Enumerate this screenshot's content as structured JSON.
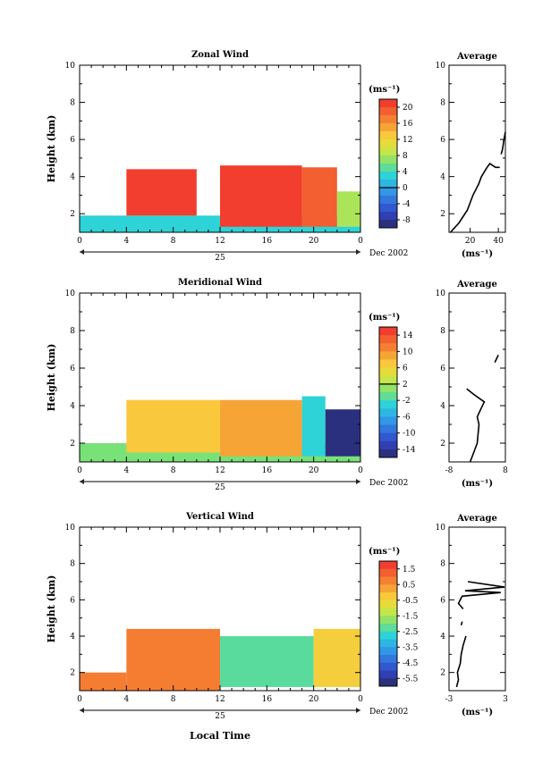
{
  "chart_data": [
    {
      "type": "heatmap",
      "title": "Zonal Wind",
      "ylabel": "Height (km)",
      "x_ticks": [
        "0",
        "4",
        "8",
        "12",
        "16",
        "20",
        "0"
      ],
      "day_label": "25",
      "date_label": "Dec 2002",
      "xlim": [
        0,
        24
      ],
      "ylim": [
        1,
        10
      ],
      "y_ticks": [
        "2",
        "4",
        "6",
        "8",
        "10"
      ],
      "colorbar_unit": "(ms⁻¹)",
      "colorbar_ticks": [
        "20",
        "16",
        "12",
        "8",
        "4",
        "0",
        "-4",
        "-8"
      ],
      "colorbar_range": [
        -10,
        22
      ],
      "colorbar_zero_line": 0,
      "regions": [
        {
          "x0": 0,
          "x1": 24,
          "y0": 1,
          "y1": 1.9,
          "value": 3
        },
        {
          "x0": 4,
          "x1": 10,
          "y0": 1.9,
          "y1": 4.4,
          "value": 21
        },
        {
          "x0": 12,
          "x1": 19,
          "y0": 1.3,
          "y1": 4.6,
          "value": 21
        },
        {
          "x0": 19,
          "x1": 22,
          "y0": 1.3,
          "y1": 4.5,
          "value": 19
        },
        {
          "x0": 22,
          "x1": 24,
          "y0": 1.3,
          "y1": 3.2,
          "value": 8
        }
      ]
    },
    {
      "type": "line",
      "title": "Average",
      "x_ticks": [
        "20",
        "40"
      ],
      "xlim": [
        5,
        45
      ],
      "ylim": [
        1,
        10
      ],
      "y_ticks": [
        "2",
        "4",
        "6",
        "8",
        "10"
      ],
      "xlabel": "(ms⁻¹)",
      "segments": [
        [
          [
            6,
            1.0
          ],
          [
            12,
            1.5
          ],
          [
            18,
            2.2
          ],
          [
            22,
            3.0
          ],
          [
            26,
            3.6
          ],
          [
            28,
            4.0
          ],
          [
            32,
            4.5
          ],
          [
            34,
            4.7
          ],
          [
            36,
            4.6
          ],
          [
            38,
            4.5
          ],
          [
            41,
            4.5
          ]
        ],
        [
          [
            42,
            5.2
          ],
          [
            43,
            5.5
          ],
          [
            44,
            6.0
          ],
          [
            45,
            6.4
          ]
        ]
      ]
    },
    {
      "type": "heatmap",
      "title": "Meridional Wind",
      "ylabel": "Height (km)",
      "x_ticks": [
        "0",
        "4",
        "8",
        "12",
        "16",
        "20",
        "0"
      ],
      "day_label": "25",
      "date_label": "Dec 2002",
      "xlim": [
        0,
        24
      ],
      "ylim": [
        1,
        10
      ],
      "y_ticks": [
        "2",
        "4",
        "6",
        "8",
        "10"
      ],
      "colorbar_unit": "(ms⁻¹)",
      "colorbar_ticks": [
        "14",
        "10",
        "6",
        "2",
        "-2",
        "-6",
        "-10",
        "-14"
      ],
      "colorbar_range": [
        -16,
        16
      ],
      "colorbar_zero_line": 2,
      "regions": [
        {
          "x0": 0,
          "x1": 24,
          "y0": 1,
          "y1": 2.0,
          "value": 0
        },
        {
          "x0": 4,
          "x1": 12,
          "y0": 1.5,
          "y1": 4.3,
          "value": 7
        },
        {
          "x0": 12,
          "x1": 19,
          "y0": 1.3,
          "y1": 4.3,
          "value": 9
        },
        {
          "x0": 19,
          "x1": 21,
          "y0": 1.3,
          "y1": 4.5,
          "value": -3
        },
        {
          "x0": 21,
          "x1": 24,
          "y0": 1.3,
          "y1": 3.8,
          "value": -15
        }
      ]
    },
    {
      "type": "line",
      "title": "Average",
      "x_ticks": [
        "-8",
        "8"
      ],
      "xlim": [
        -8,
        8
      ],
      "ylim": [
        1,
        10
      ],
      "y_ticks": [
        "2",
        "4",
        "6",
        "8",
        "10"
      ],
      "xlabel": "(ms⁻¹)",
      "segments": [
        [
          [
            -2,
            1.0
          ],
          [
            -1,
            1.5
          ],
          [
            0,
            2.0
          ],
          [
            0.5,
            3.0
          ],
          [
            0,
            3.4
          ],
          [
            1,
            3.8
          ],
          [
            2,
            4.2
          ],
          [
            -1,
            4.6
          ],
          [
            -3,
            4.9
          ]
        ],
        [
          [
            5,
            6.3
          ],
          [
            6,
            6.7
          ]
        ]
      ]
    },
    {
      "type": "heatmap",
      "title": "Vertical Wind",
      "ylabel": "Height (km)",
      "xlabel": "Local Time",
      "x_ticks": [
        "0",
        "4",
        "8",
        "12",
        "16",
        "20",
        "0"
      ],
      "day_label": "25",
      "date_label": "Dec 2002",
      "xlim": [
        0,
        24
      ],
      "ylim": [
        1,
        10
      ],
      "y_ticks": [
        "2",
        "4",
        "6",
        "8",
        "10"
      ],
      "colorbar_unit": "(ms⁻¹)",
      "colorbar_ticks": [
        "1.5",
        "0.5",
        "-0.5",
        "-1.5",
        "-2.5",
        "-3.5",
        "-4.5",
        "-5.5"
      ],
      "colorbar_range": [
        -6,
        2
      ],
      "colorbar_zero_line": null,
      "regions": [
        {
          "x0": 0,
          "x1": 4,
          "y0": 1,
          "y1": 2.0,
          "value": 0.8
        },
        {
          "x0": 4,
          "x1": 12,
          "y0": 1,
          "y1": 4.4,
          "value": 0.8
        },
        {
          "x0": 12,
          "x1": 20,
          "y0": 1.2,
          "y1": 4.0,
          "value": -2.3
        },
        {
          "x0": 20,
          "x1": 24,
          "y0": 1.2,
          "y1": 4.4,
          "value": -0.4
        }
      ]
    },
    {
      "type": "line",
      "title": "Average",
      "x_ticks": [
        "-3",
        "3"
      ],
      "xlim": [
        -3,
        3
      ],
      "ylim": [
        1,
        10
      ],
      "y_ticks": [
        "2",
        "4",
        "6",
        "8",
        "10"
      ],
      "xlabel": "(ms⁻¹)",
      "segments": [
        [
          [
            -2.2,
            1.2
          ],
          [
            -2.0,
            1.6
          ],
          [
            -2.1,
            2.0
          ],
          [
            -1.8,
            2.5
          ],
          [
            -1.7,
            3.0
          ],
          [
            -1.5,
            3.5
          ],
          [
            -1.2,
            4.0
          ]
        ],
        [
          [
            -1.7,
            4.6
          ],
          [
            -1.6,
            4.8
          ]
        ],
        [
          [
            -1.5,
            5.5
          ],
          [
            -2.0,
            5.8
          ],
          [
            -1.8,
            6.0
          ],
          [
            -1.6,
            6.2
          ],
          [
            2.5,
            6.4
          ],
          [
            -1.3,
            6.5
          ],
          [
            2.9,
            6.7
          ],
          [
            -1.0,
            7.0
          ]
        ]
      ]
    }
  ]
}
